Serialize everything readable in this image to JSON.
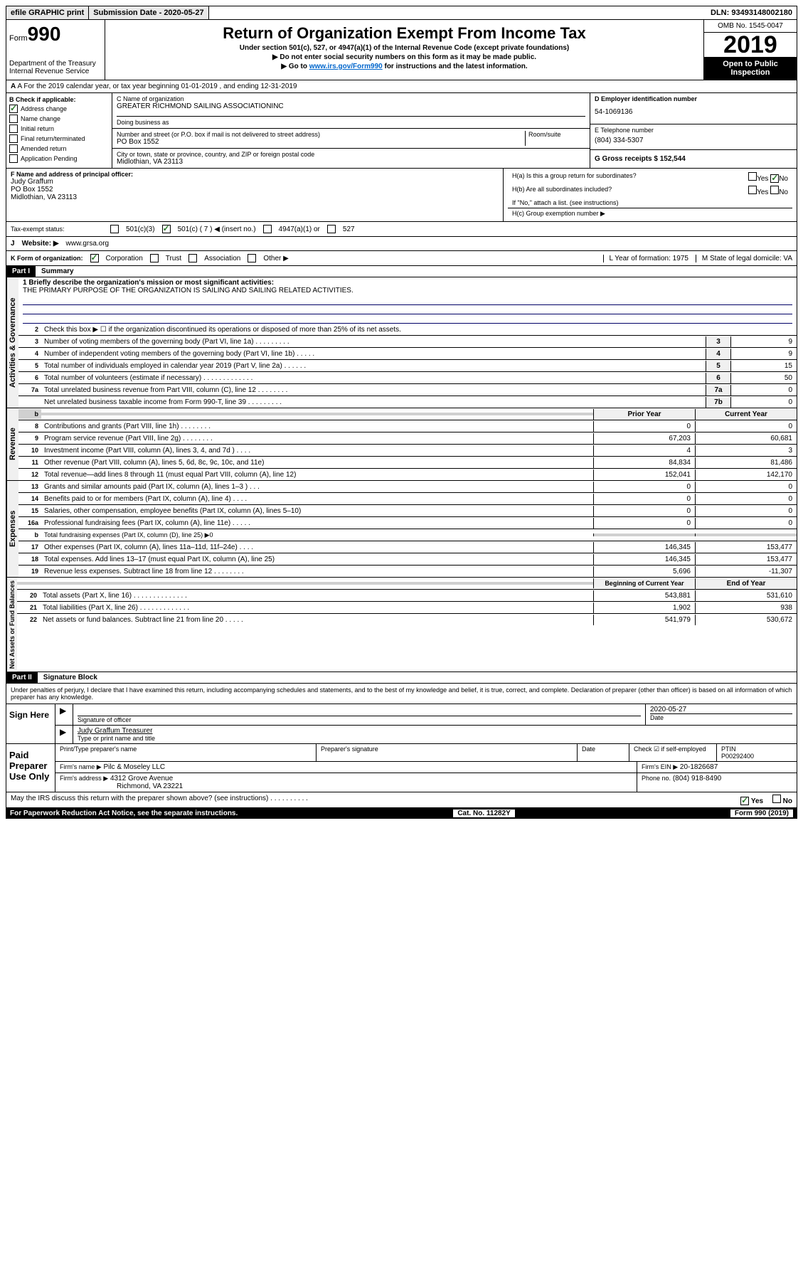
{
  "header": {
    "efile": "efile GRAPHIC print",
    "submission_date_label": "Submission Date - 2020-05-27",
    "dln": "DLN: 93493148002180"
  },
  "form": {
    "form_label": "Form",
    "form_num": "990",
    "dept": "Department of the Treasury",
    "irs": "Internal Revenue Service",
    "title": "Return of Organization Exempt From Income Tax",
    "subtitle1": "Under section 501(c), 527, or 4947(a)(1) of the Internal Revenue Code (except private foundations)",
    "subtitle2": "▶ Do not enter social security numbers on this form as it may be made public.",
    "subtitle3_pre": "▶ Go to ",
    "subtitle3_link": "www.irs.gov/Form990",
    "subtitle3_post": " for instructions and the latest information.",
    "omb": "OMB No. 1545-0047",
    "year": "2019",
    "open_public": "Open to Public Inspection"
  },
  "row_a": "A For the 2019 calendar year, or tax year beginning 01-01-2019    , and ending 12-31-2019",
  "col_b": {
    "label": "B Check if applicable:",
    "address_change": "Address change",
    "name_change": "Name change",
    "initial_return": "Initial return",
    "final_return": "Final return/terminated",
    "amended": "Amended return",
    "app_pending": "Application Pending"
  },
  "col_c": {
    "name_label": "C Name of organization",
    "name": "GREATER RICHMOND SAILING ASSOCIATIONINC",
    "dba_label": "Doing business as",
    "addr_label": "Number and street (or P.O. box if mail is not delivered to street address)",
    "room_label": "Room/suite",
    "addr": "PO Box 1552",
    "city_label": "City or town, state or province, country, and ZIP or foreign postal code",
    "city": "Midlothian, VA  23113"
  },
  "col_d": {
    "ein_label": "D Employer identification number",
    "ein": "54-1069136",
    "phone_label": "E Telephone number",
    "phone": "(804) 334-5307",
    "gross_label": "G Gross receipts $ 152,544"
  },
  "row_f": {
    "label": "F  Name and address of principal officer:",
    "name": "Judy Graffum",
    "addr1": "PO Box 1552",
    "addr2": "Midlothian, VA  23113"
  },
  "row_h": {
    "ha": "H(a)  Is this a group return for subordinates?",
    "hb": "H(b)  Are all subordinates included?",
    "hb_note": "If \"No,\" attach a list. (see instructions)",
    "hc": "H(c)  Group exemption number ▶",
    "yes": "Yes",
    "no": "No"
  },
  "tax_status": {
    "label": "Tax-exempt status:",
    "c3": "501(c)(3)",
    "c7": "501(c) ( 7 ) ◀ (insert no.)",
    "a1": "4947(a)(1) or",
    "s527": "527"
  },
  "row_j": {
    "label": "J",
    "website_label": "Website: ▶",
    "website": "www.grsa.org"
  },
  "row_k": {
    "label": "K Form of organization:",
    "corp": "Corporation",
    "trust": "Trust",
    "assoc": "Association",
    "other": "Other ▶",
    "l_label": "L Year of formation: 1975",
    "m_label": "M State of legal domicile: VA"
  },
  "part1": {
    "header": "Part I",
    "title": "Summary",
    "line1_label": "1  Briefly describe the organization's mission or most significant activities:",
    "mission": "THE PRIMARY PURPOSE OF THE ORGANIZATION IS SAILING AND SAILING RELATED ACTIVITIES.",
    "line2": "Check this box ▶ ☐  if the organization discontinued its operations or disposed of more than 25% of its net assets.",
    "lines": [
      {
        "n": "3",
        "t": "Number of voting members of the governing body (Part VI, line 1a)  .  .  .  .  .  .  .  .  .",
        "b": "3",
        "v": "9"
      },
      {
        "n": "4",
        "t": "Number of independent voting members of the governing body (Part VI, line 1b)  .  .  .  .  .",
        "b": "4",
        "v": "9"
      },
      {
        "n": "5",
        "t": "Total number of individuals employed in calendar year 2019 (Part V, line 2a)  .  .  .  .  .  .",
        "b": "5",
        "v": "15"
      },
      {
        "n": "6",
        "t": "Total number of volunteers (estimate if necessary)   .  .  .  .  .  .  .  .  .  .  .  .  .",
        "b": "6",
        "v": "50"
      },
      {
        "n": "7a",
        "t": "Total unrelated business revenue from Part VIII, column (C), line 12  .  .  .  .  .  .  .  .",
        "b": "7a",
        "v": "0"
      },
      {
        "n": "",
        "t": "Net unrelated business taxable income from Form 990-T, line 39  .  .  .  .  .  .  .  .  .",
        "b": "7b",
        "v": "0"
      }
    ],
    "prior_year": "Prior Year",
    "current_year": "Current Year",
    "fin_lines": [
      {
        "n": "8",
        "t": "Contributions and grants (Part VIII, line 1h)   .  .  .  .  .  .  .  .",
        "p": "0",
        "c": "0"
      },
      {
        "n": "9",
        "t": "Program service revenue (Part VIII, line 2g)   .  .  .  .  .  .  .  .",
        "p": "67,203",
        "c": "60,681"
      },
      {
        "n": "10",
        "t": "Investment income (Part VIII, column (A), lines 3, 4, and 7d )  .  .  .  .",
        "p": "4",
        "c": "3"
      },
      {
        "n": "11",
        "t": "Other revenue (Part VIII, column (A), lines 5, 6d, 8c, 9c, 10c, and 11e)",
        "p": "84,834",
        "c": "81,486"
      },
      {
        "n": "12",
        "t": "Total revenue—add lines 8 through 11 (must equal Part VIII, column (A), line 12)",
        "p": "152,041",
        "c": "142,170"
      },
      {
        "n": "13",
        "t": "Grants and similar amounts paid (Part IX, column (A), lines 1–3 )  .  .  .",
        "p": "0",
        "c": "0"
      },
      {
        "n": "14",
        "t": "Benefits paid to or for members (Part IX, column (A), line 4)  .  .  .  .",
        "p": "0",
        "c": "0"
      },
      {
        "n": "15",
        "t": "Salaries, other compensation, employee benefits (Part IX, column (A), lines 5–10)",
        "p": "0",
        "c": "0"
      },
      {
        "n": "16a",
        "t": "Professional fundraising fees (Part IX, column (A), line 11e)  .  .  .  .  .",
        "p": "0",
        "c": "0"
      },
      {
        "n": "b",
        "t": "Total fundraising expenses (Part IX, column (D), line 25) ▶0",
        "p": "",
        "c": "",
        "shaded": true
      },
      {
        "n": "17",
        "t": "Other expenses (Part IX, column (A), lines 11a–11d, 11f–24e)  .  .  .  .",
        "p": "146,345",
        "c": "153,477"
      },
      {
        "n": "18",
        "t": "Total expenses. Add lines 13–17 (must equal Part IX, column (A), line 25)",
        "p": "146,345",
        "c": "153,477"
      },
      {
        "n": "19",
        "t": "Revenue less expenses. Subtract line 18 from line 12  .  .  .  .  .  .  .  .",
        "p": "5,696",
        "c": "-11,307"
      }
    ],
    "beg_year": "Beginning of Current Year",
    "end_year": "End of Year",
    "bal_lines": [
      {
        "n": "20",
        "t": "Total assets (Part X, line 16)  .  .  .  .  .  .  .  .  .  .  .  .  .  .",
        "p": "543,881",
        "c": "531,610"
      },
      {
        "n": "21",
        "t": "Total liabilities (Part X, line 26)  .  .  .  .  .  .  .  .  .  .  .  .  .",
        "p": "1,902",
        "c": "938"
      },
      {
        "n": "22",
        "t": "Net assets or fund balances. Subtract line 21 from line 20  .  .  .  .  .",
        "p": "541,979",
        "c": "530,672"
      }
    ]
  },
  "labels": {
    "activities": "Activities & Governance",
    "revenue": "Revenue",
    "expenses": "Expenses",
    "net_assets": "Net Assets or Fund Balances"
  },
  "part2": {
    "header": "Part II",
    "title": "Signature Block",
    "perjury": "Under penalties of perjury, I declare that I have examined this return, including accompanying schedules and statements, and to the best of my knowledge and belief, it is true, correct, and complete. Declaration of preparer (other than officer) is based on all information of which preparer has any knowledge.",
    "sign_here": "Sign Here",
    "sig_officer": "Signature of officer",
    "date": "Date",
    "sig_date": "2020-05-27",
    "officer_name": "Judy Graffum  Treasurer",
    "type_name": "Type or print name and title",
    "paid_prep": "Paid Preparer Use Only",
    "prep_name_label": "Print/Type preparer's name",
    "prep_sig_label": "Preparer's signature",
    "date_label": "Date",
    "check_self": "Check ☑ if self-employed",
    "ptin_label": "PTIN",
    "ptin": "P00292400",
    "firm_name_label": "Firm's name    ▶",
    "firm_name": "Pilc & Moseley LLC",
    "firm_ein_label": "Firm's EIN ▶",
    "firm_ein": "20-1826687",
    "firm_addr_label": "Firm's address ▶",
    "firm_addr1": "4312 Grove Avenue",
    "firm_addr2": "Richmond, VA  23221",
    "phone_label": "Phone no.",
    "phone": "(804) 918-8490",
    "discuss": "May the IRS discuss this return with the preparer shown above? (see instructions)   .  .  .  .  .  .  .  .  .  .",
    "yes": "Yes",
    "no": "No"
  },
  "footer": {
    "paperwork": "For Paperwork Reduction Act Notice, see the separate instructions.",
    "cat": "Cat. No. 11282Y",
    "form": "Form 990 (2019)"
  }
}
